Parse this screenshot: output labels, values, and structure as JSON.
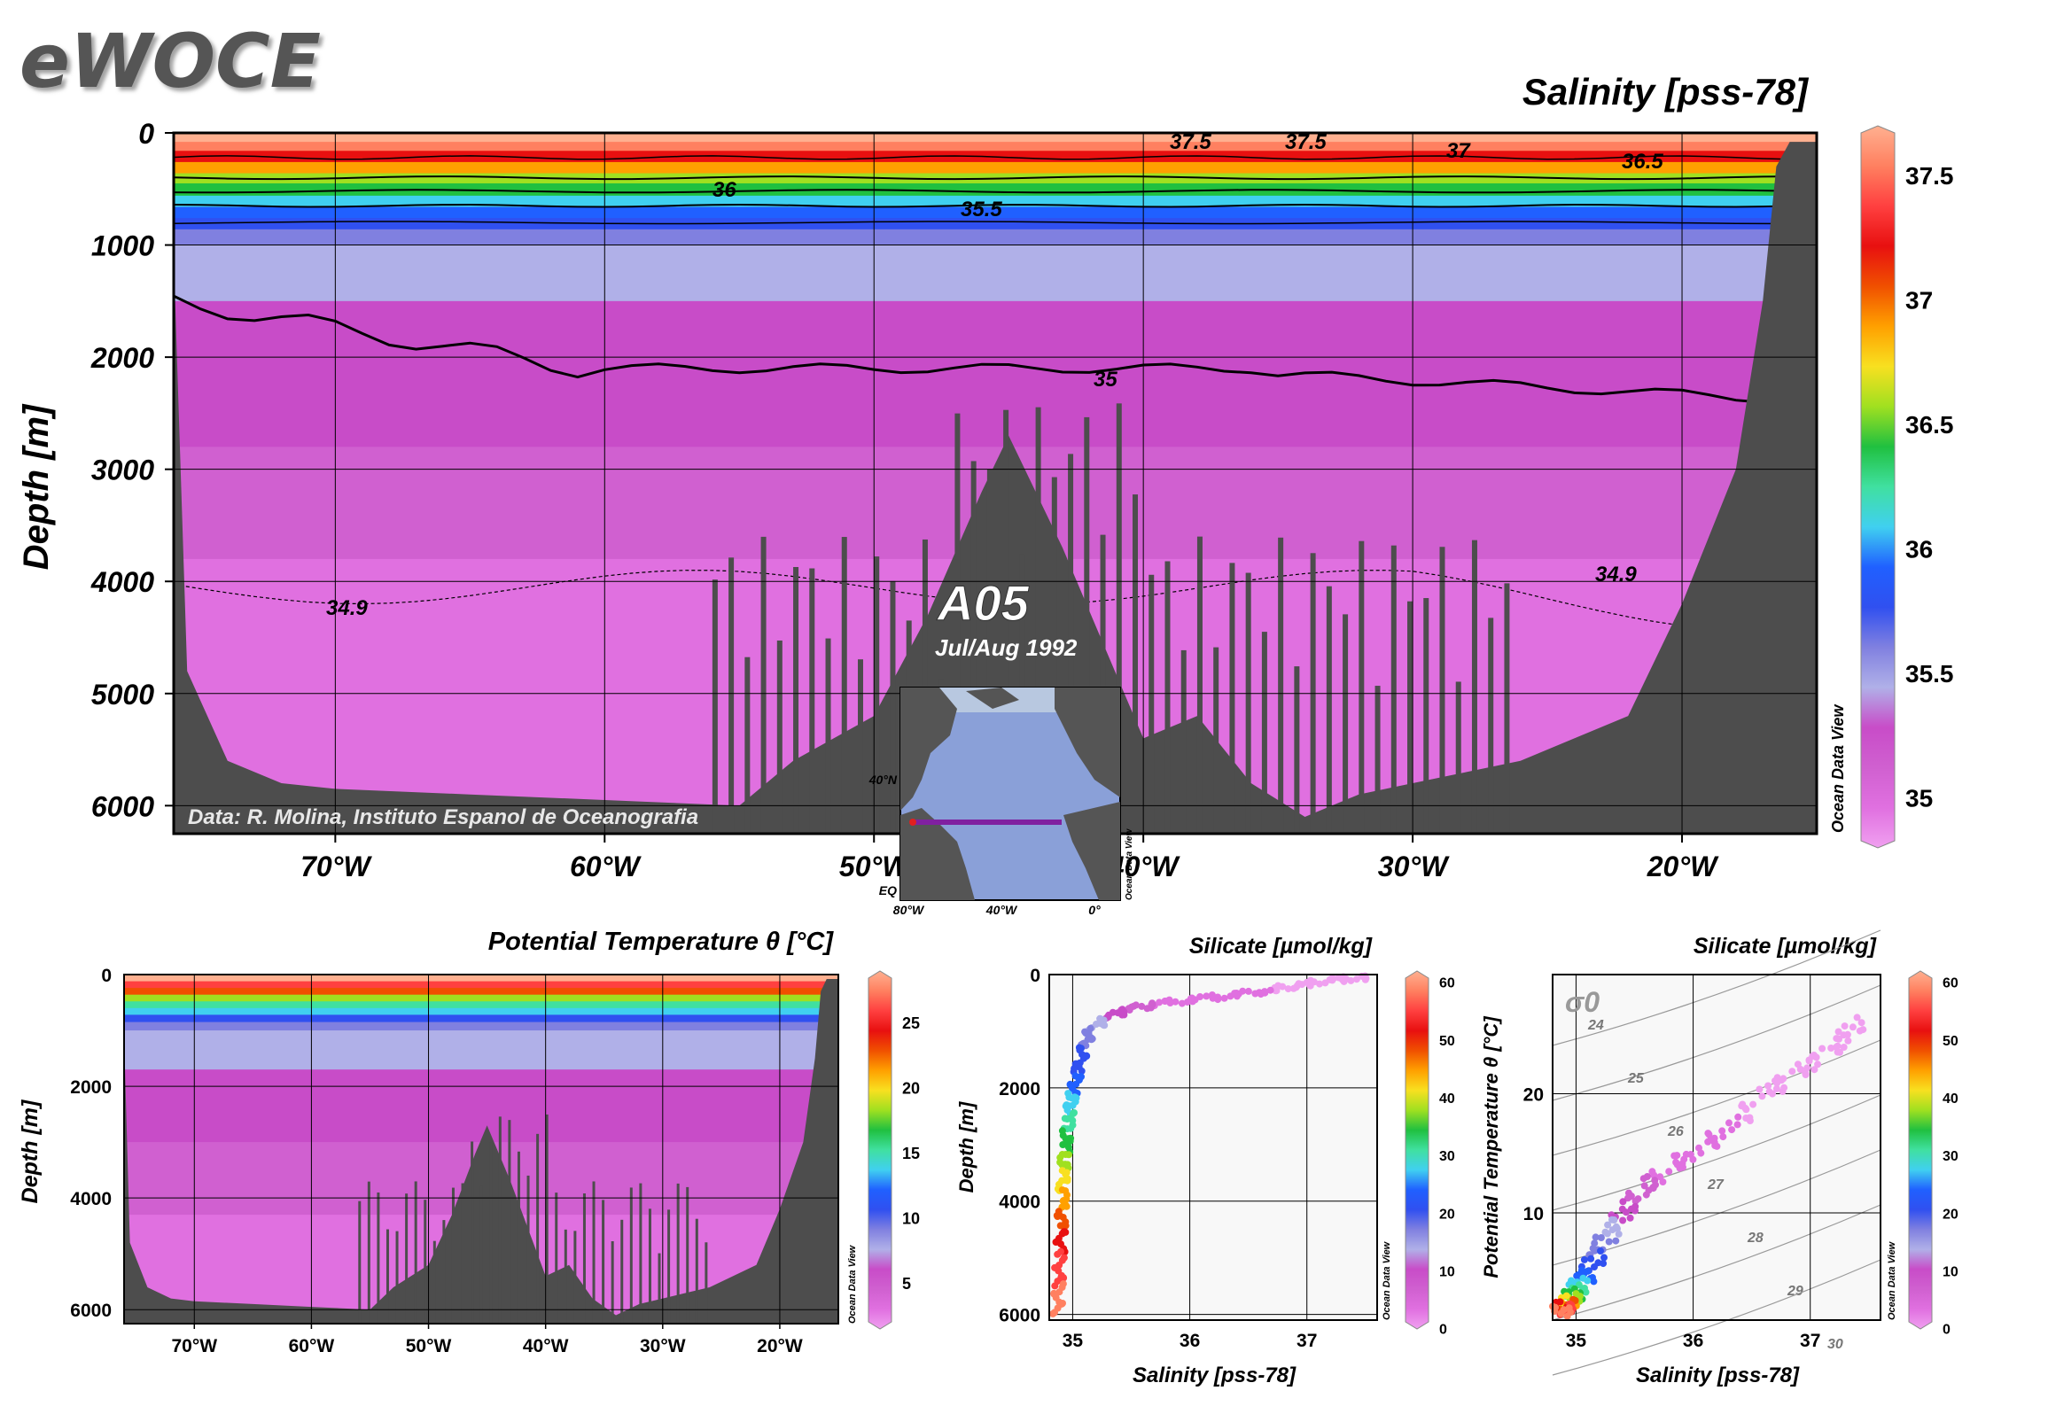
{
  "logo": "eWOCE",
  "section": {
    "name": "A05",
    "date": "Jul/Aug 1992"
  },
  "credit": "Data: R. Molina, Instituto Espanol de Oceanografia",
  "odv_label": "Ocean Data View",
  "inset": {
    "lat_labels": [
      "40°N",
      "EQ"
    ],
    "lon_labels": [
      "80°W",
      "40°W",
      "0°"
    ]
  },
  "colors": {
    "topography": "#4d4d4d",
    "colormap": [
      "#f0a0f0",
      "#e070e0",
      "#d060d0",
      "#c84cc8",
      "#b0b0e8",
      "#8080e0",
      "#3050f0",
      "#2060ff",
      "#40d0f0",
      "#40e0a0",
      "#20c040",
      "#a0e020",
      "#f8e020",
      "#ffa000",
      "#f05000",
      "#e81010",
      "#ff4040",
      "#ff8060",
      "#ffb090"
    ]
  },
  "chart_data": [
    {
      "type": "heatmap",
      "title": "Salinity [pss-78]",
      "ylabel": "Depth [m]",
      "xlabel": "",
      "x_ticks": [
        "70°W",
        "60°W",
        "50°W",
        "40°W",
        "30°W",
        "20°W"
      ],
      "x_tick_values": [
        -70,
        -60,
        -50,
        -40,
        -30,
        -20
      ],
      "y_ticks": [
        "0",
        "1000",
        "2000",
        "3000",
        "4000",
        "5000",
        "6000"
      ],
      "y_tick_values": [
        0,
        1000,
        2000,
        3000,
        4000,
        5000,
        6000
      ],
      "xlim": [
        -76,
        -15
      ],
      "ylim": [
        6250,
        0
      ],
      "colorbar": {
        "ticks": [
          "37.5",
          "37",
          "36.5",
          "36",
          "35.5",
          "35"
        ],
        "tick_values": [
          37.5,
          37.0,
          36.5,
          36.0,
          35.5,
          35.0
        ],
        "range": [
          34.8,
          37.7
        ]
      },
      "contour_labels": [
        "37.5",
        "37.5",
        "37",
        "36.5",
        "36",
        "35.5",
        "35",
        "34.9",
        "34.9"
      ],
      "bottom_depth_profile": {
        "lon": [
          -76,
          -75.5,
          -74,
          -72,
          -70,
          -65,
          -60,
          -55,
          -53,
          -50,
          -48,
          -46,
          -45,
          -43,
          -40,
          -38,
          -36,
          -34,
          -32,
          -30,
          -28,
          -26,
          -24,
          -22,
          -20,
          -18,
          -17,
          -16.5,
          -16
        ],
        "depth": [
          1100,
          4800,
          5600,
          5800,
          5850,
          5900,
          5950,
          6000,
          5600,
          5200,
          4300,
          3200,
          2700,
          3700,
          5400,
          5200,
          5800,
          6100,
          5900,
          5800,
          5700,
          5600,
          5400,
          5200,
          4200,
          3000,
          1500,
          300,
          80
        ]
      }
    },
    {
      "type": "heatmap",
      "title": "Potential Temperature θ [°C]",
      "ylabel": "Depth [m]",
      "x_ticks": [
        "70°W",
        "60°W",
        "50°W",
        "40°W",
        "30°W",
        "20°W"
      ],
      "x_tick_values": [
        -70,
        -60,
        -50,
        -40,
        -30,
        -20
      ],
      "y_ticks": [
        "0",
        "2000",
        "4000",
        "6000"
      ],
      "y_tick_values": [
        0,
        2000,
        4000,
        6000
      ],
      "xlim": [
        -76,
        -15
      ],
      "ylim": [
        6250,
        0
      ],
      "colorbar": {
        "ticks": [
          "25",
          "20",
          "15",
          "10",
          "5"
        ],
        "tick_values": [
          25,
          20,
          15,
          10,
          5
        ],
        "range": [
          1.5,
          29
        ]
      }
    },
    {
      "type": "scatter",
      "title": "Silicate [µmol/kg]",
      "xlabel": "Salinity [pss-78]",
      "ylabel": "Depth [m]",
      "x_ticks": [
        "35",
        "36",
        "37"
      ],
      "x_tick_values": [
        35,
        36,
        37
      ],
      "y_ticks": [
        "0",
        "2000",
        "4000",
        "6000"
      ],
      "y_tick_values": [
        0,
        2000,
        4000,
        6000
      ],
      "xlim": [
        34.8,
        37.6
      ],
      "ylim": [
        6100,
        0
      ],
      "colorbar": {
        "ticks": [
          "60",
          "50",
          "40",
          "30",
          "20",
          "10",
          "0"
        ],
        "tick_values": [
          60,
          50,
          40,
          30,
          20,
          10,
          0
        ],
        "range": [
          0,
          62
        ]
      },
      "points": [
        {
          "x": 37.5,
          "y": 50,
          "c": 1
        },
        {
          "x": 37.2,
          "y": 100,
          "c": 1
        },
        {
          "x": 36.9,
          "y": 200,
          "c": 1
        },
        {
          "x": 36.6,
          "y": 300,
          "c": 2
        },
        {
          "x": 36.2,
          "y": 400,
          "c": 2
        },
        {
          "x": 35.8,
          "y": 500,
          "c": 4
        },
        {
          "x": 35.5,
          "y": 600,
          "c": 7
        },
        {
          "x": 35.3,
          "y": 750,
          "c": 12
        },
        {
          "x": 35.15,
          "y": 1000,
          "c": 16
        },
        {
          "x": 35.1,
          "y": 1300,
          "c": 19
        },
        {
          "x": 35.05,
          "y": 1700,
          "c": 22
        },
        {
          "x": 35.0,
          "y": 2100,
          "c": 26
        },
        {
          "x": 34.97,
          "y": 2500,
          "c": 30
        },
        {
          "x": 34.94,
          "y": 3000,
          "c": 35
        },
        {
          "x": 34.92,
          "y": 3500,
          "c": 40
        },
        {
          "x": 34.91,
          "y": 4000,
          "c": 45
        },
        {
          "x": 34.9,
          "y": 4500,
          "c": 50
        },
        {
          "x": 34.89,
          "y": 5000,
          "c": 54
        },
        {
          "x": 34.88,
          "y": 5500,
          "c": 57
        },
        {
          "x": 34.87,
          "y": 6000,
          "c": 60
        }
      ]
    },
    {
      "type": "scatter",
      "title": "Silicate [µmol/kg]",
      "xlabel": "Salinity [pss-78]",
      "ylabel": "Potential Temperature θ [°C]",
      "x_ticks": [
        "35",
        "36",
        "37"
      ],
      "x_tick_values": [
        35,
        36,
        37
      ],
      "y_ticks": [
        "10",
        "20"
      ],
      "y_tick_values": [
        10,
        20
      ],
      "xlim": [
        34.8,
        37.6
      ],
      "ylim": [
        1,
        30
      ],
      "isopycnal_label": "σ0",
      "isopycnal_ticks": [
        "24",
        "25",
        "26",
        "27",
        "28",
        "29",
        "30"
      ],
      "colorbar": {
        "ticks": [
          "60",
          "50",
          "40",
          "30",
          "20",
          "10",
          "0"
        ],
        "tick_values": [
          60,
          50,
          40,
          30,
          20,
          10,
          0
        ],
        "range": [
          0,
          62
        ]
      },
      "points": [
        {
          "x": 37.4,
          "y": 26,
          "c": 1
        },
        {
          "x": 37.2,
          "y": 24,
          "c": 1
        },
        {
          "x": 36.9,
          "y": 22,
          "c": 1
        },
        {
          "x": 36.6,
          "y": 20,
          "c": 1
        },
        {
          "x": 36.3,
          "y": 17,
          "c": 2
        },
        {
          "x": 36.0,
          "y": 15,
          "c": 3
        },
        {
          "x": 35.7,
          "y": 13,
          "c": 5
        },
        {
          "x": 35.5,
          "y": 11,
          "c": 8
        },
        {
          "x": 35.35,
          "y": 9,
          "c": 13
        },
        {
          "x": 35.2,
          "y": 7,
          "c": 18
        },
        {
          "x": 35.1,
          "y": 5,
          "c": 22
        },
        {
          "x": 35.02,
          "y": 4,
          "c": 28
        },
        {
          "x": 34.97,
          "y": 3,
          "c": 35
        },
        {
          "x": 34.92,
          "y": 2.5,
          "c": 45
        },
        {
          "x": 34.89,
          "y": 2,
          "c": 55
        },
        {
          "x": 34.87,
          "y": 1.6,
          "c": 60
        }
      ]
    }
  ]
}
